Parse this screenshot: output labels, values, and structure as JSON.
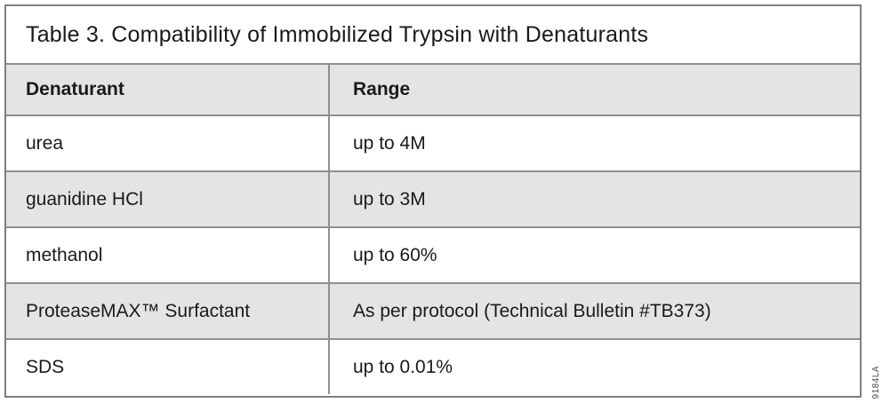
{
  "table": {
    "title": "Table 3. Compatibility of Immobilized Trypsin with Denaturants",
    "columns": [
      "Denaturant",
      "Range"
    ],
    "rows": [
      {
        "denaturant": "urea",
        "range": "up to 4M"
      },
      {
        "denaturant": "guanidine HCl",
        "range": "up to 3M"
      },
      {
        "denaturant": "methanol",
        "range": "up to 60%"
      },
      {
        "denaturant": "ProteaseMAX™ Surfactant",
        "range": "As per protocol (Technical Bulletin #TB373)"
      },
      {
        "denaturant": "SDS",
        "range": "up to 0.01%"
      }
    ]
  },
  "figure_id": "9184LA",
  "colors": {
    "row_shade": "#e4e4e4",
    "border": "#8f8f8f",
    "outer_border": "#7f7f7f",
    "background": "#ffffff",
    "text": "#1a1a1a"
  }
}
